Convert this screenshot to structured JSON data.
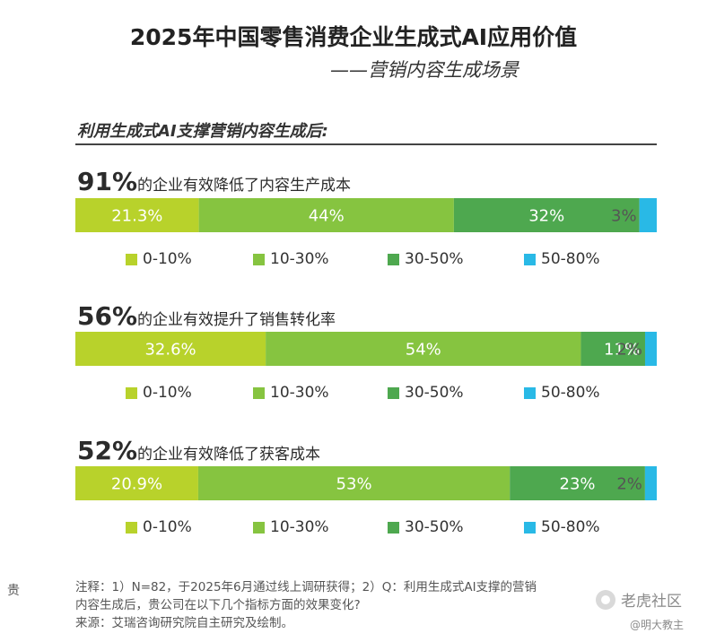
{
  "header": {
    "title": "2025年中国零售消费企业生成式AI应用价值",
    "subtitle": "——营销内容生成场景"
  },
  "intro": "利用生成式AI支撑营销内容生成后:",
  "colors": {
    "0-10%": "#b8d22b",
    "10-30%": "#86c440",
    "30-50%": "#4ea84f",
    "50-80%": "#29b9e6"
  },
  "chart_data": [
    {
      "type": "bar",
      "headline_pct": "91%",
      "headline_text": "的企业有效降低了内容生产成本",
      "categories": [
        "0-10%",
        "10-30%",
        "30-50%",
        "50-80%"
      ],
      "values": [
        21.3,
        44,
        32,
        3
      ],
      "labels": [
        "21.3%",
        "44%",
        "32%",
        "3%"
      ]
    },
    {
      "type": "bar",
      "headline_pct": "56%",
      "headline_text": "的企业有效提升了销售转化率",
      "categories": [
        "0-10%",
        "10-30%",
        "30-50%",
        "50-80%"
      ],
      "values": [
        32.6,
        54,
        11,
        2
      ],
      "labels": [
        "32.6%",
        "54%",
        "11%",
        "2%"
      ]
    },
    {
      "type": "bar",
      "headline_pct": "52%",
      "headline_text": "的企业有效降低了获客成本",
      "categories": [
        "0-10%",
        "10-30%",
        "30-50%",
        "50-80%"
      ],
      "values": [
        20.9,
        53,
        23,
        2
      ],
      "labels": [
        "20.9%",
        "53%",
        "23%",
        "2%"
      ]
    }
  ],
  "footer": {
    "left_char": "贵",
    "note_line1": "注释：1）N=82，于2025年6月通过线上调研获得；2）Q：利用生成式AI支撑的营销",
    "note_line2": "内容生成后，贵公司在以下几个指标方面的效果变化?",
    "source": "来源：艾瑞咨询研究院自主研究及绘制。"
  },
  "watermarks": {
    "brand": "老虎社区",
    "handle": "@明大教主"
  }
}
